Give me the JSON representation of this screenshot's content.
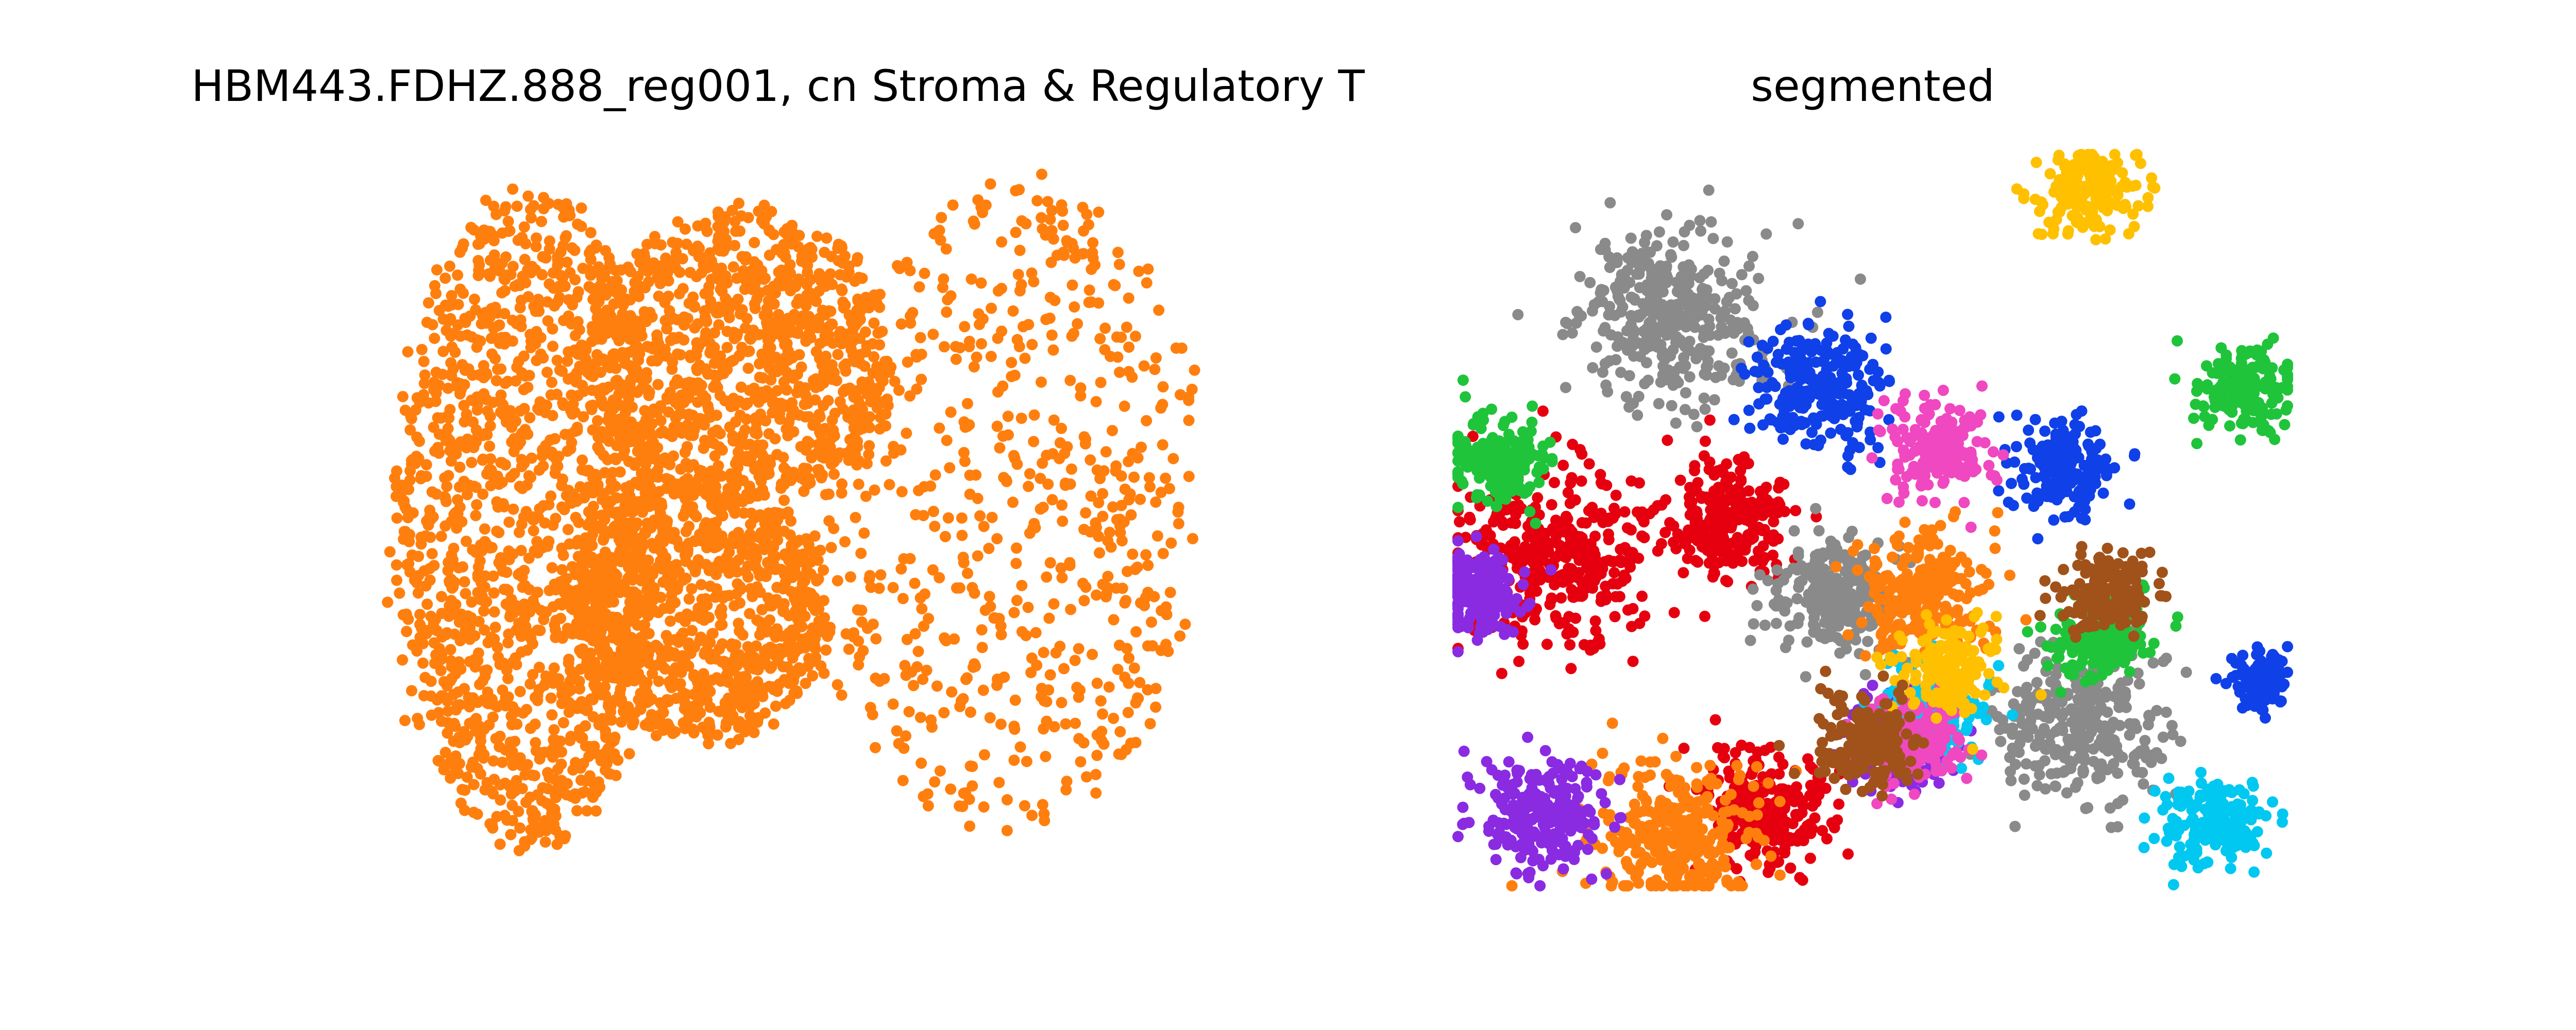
{
  "chart_data": [
    {
      "type": "scatter",
      "title": "HBM443.FDHZ.888_reg001, cn Stroma & Regulatory T",
      "axes": "off",
      "grid": false,
      "xlim": [
        0,
        100
      ],
      "ylim": [
        0,
        100
      ],
      "colors": [
        "#ff7f0e"
      ],
      "points_shown": "approximately 9000 cells, single colour",
      "regions": [
        {
          "name": "dense left lobe",
          "cx": 20,
          "cy": 50,
          "rx": 16,
          "ry": 45,
          "density": 1.0
        },
        {
          "name": "upper ring",
          "cx": 45,
          "cy": 72,
          "rx": 18,
          "ry": 20,
          "density": 0.7
        },
        {
          "name": "central ring",
          "cx": 40,
          "cy": 38,
          "rx": 16,
          "ry": 18,
          "density": 0.7
        },
        {
          "name": "right sparse region",
          "cx": 77,
          "cy": 52,
          "rx": 23,
          "ry": 45,
          "density": 0.45
        }
      ]
    },
    {
      "type": "scatter",
      "title": "segmented",
      "axes": "off",
      "grid": false,
      "xlim": [
        0,
        100
      ],
      "ylim": [
        0,
        100
      ],
      "colors": [
        "#e6000f",
        "#8a8a8a",
        "#1040e8",
        "#ff7f0e",
        "#8a2be2",
        "#1fc43a",
        "#00c8f0",
        "#f048c0",
        "#ffc000",
        "#a0521a"
      ],
      "segments": [
        {
          "color_index": 0,
          "cx": 12,
          "cy": 45,
          "spread": 6
        },
        {
          "color_index": 0,
          "cx": 33,
          "cy": 50,
          "spread": 4
        },
        {
          "color_index": 0,
          "cx": 37,
          "cy": 10,
          "spread": 4
        },
        {
          "color_index": 1,
          "cx": 26,
          "cy": 78,
          "spread": 6
        },
        {
          "color_index": 1,
          "cx": 45,
          "cy": 40,
          "spread": 4
        },
        {
          "color_index": 1,
          "cx": 75,
          "cy": 22,
          "spread": 5
        },
        {
          "color_index": 2,
          "cx": 43,
          "cy": 68,
          "spread": 4
        },
        {
          "color_index": 2,
          "cx": 73,
          "cy": 57,
          "spread": 3
        },
        {
          "color_index": 2,
          "cx": 97,
          "cy": 28,
          "spread": 2
        },
        {
          "color_index": 3,
          "cx": 26,
          "cy": 7,
          "spread": 5
        },
        {
          "color_index": 3,
          "cx": 56,
          "cy": 40,
          "spread": 4
        },
        {
          "color_index": 4,
          "cx": 2,
          "cy": 40,
          "spread": 3
        },
        {
          "color_index": 4,
          "cx": 10,
          "cy": 10,
          "spread": 4
        },
        {
          "color_index": 4,
          "cx": 53,
          "cy": 20,
          "spread": 3
        },
        {
          "color_index": 5,
          "cx": 5,
          "cy": 58,
          "spread": 3
        },
        {
          "color_index": 5,
          "cx": 78,
          "cy": 34,
          "spread": 3
        },
        {
          "color_index": 5,
          "cx": 95,
          "cy": 68,
          "spread": 3
        },
        {
          "color_index": 6,
          "cx": 57,
          "cy": 24,
          "spread": 3
        },
        {
          "color_index": 6,
          "cx": 91,
          "cy": 9,
          "spread": 3
        },
        {
          "color_index": 7,
          "cx": 58,
          "cy": 60,
          "spread": 3
        },
        {
          "color_index": 7,
          "cx": 55,
          "cy": 20,
          "spread": 3
        },
        {
          "color_index": 8,
          "cx": 76,
          "cy": 95,
          "spread": 3
        },
        {
          "color_index": 8,
          "cx": 59,
          "cy": 30,
          "spread": 3
        },
        {
          "color_index": 9,
          "cx": 49,
          "cy": 20,
          "spread": 3
        },
        {
          "color_index": 9,
          "cx": 78,
          "cy": 40,
          "spread": 3
        }
      ]
    }
  ]
}
